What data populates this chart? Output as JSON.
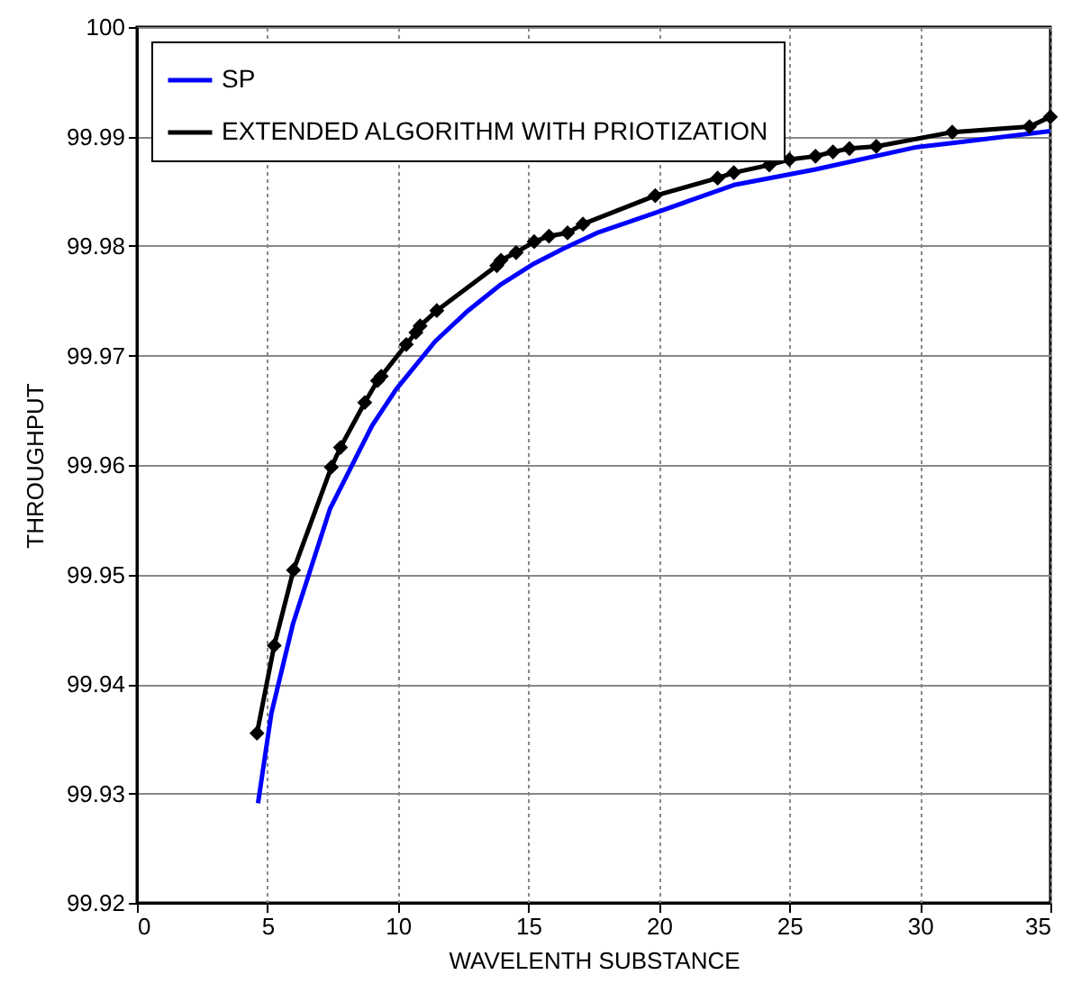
{
  "chart_data": {
    "type": "line",
    "xlabel": "WAVELENTH SUBSTANCE",
    "ylabel": "THROUGHPUT",
    "xlim": [
      0,
      35
    ],
    "xticks": [
      0,
      5,
      10,
      15,
      20,
      25,
      30,
      35
    ],
    "ylim": [
      99.92,
      100
    ],
    "yticks": [
      99.92,
      99.93,
      99.94,
      99.95,
      99.96,
      99.97,
      99.98,
      99.99,
      100
    ],
    "grid": true,
    "legend": "top left",
    "line_style": "solid",
    "series": [
      {
        "name": "SP",
        "color": "#0000ff",
        "marker": "none",
        "x": [
          4.64,
          5.15,
          5.98,
          7.4,
          9.01,
          9.93,
          11.43,
          12.69,
          13.95,
          15.22,
          16.37,
          17.63,
          19.82,
          22.92,
          26.0,
          29.81,
          31.24,
          35
        ],
        "values": [
          99.9291,
          99.9373,
          99.9455,
          99.956,
          99.9636,
          99.9669,
          99.9713,
          99.9741,
          99.9765,
          99.9784,
          99.9798,
          99.9812,
          99.983,
          99.9856,
          99.987,
          99.989,
          99.9894,
          99.9905
        ]
      },
      {
        "name": "EXTENDED ALGORITHM WITH PRIOTIZATION",
        "color": "#000000",
        "marker": "diamond",
        "x": [
          4.6,
          5.26,
          6.0,
          7.45,
          7.8,
          8.73,
          9.22,
          9.36,
          10.32,
          10.69,
          10.85,
          11.49,
          13.79,
          13.95,
          14.53,
          15.22,
          15.79,
          16.5,
          17.09,
          19.86,
          22.25,
          22.87,
          24.23,
          25.0,
          26.0,
          26.67,
          27.3,
          28.33,
          31.24,
          34.2,
          35
        ],
        "values": [
          99.9355,
          99.9435,
          99.9504,
          99.9598,
          99.9616,
          99.9657,
          99.9677,
          99.9681,
          99.971,
          99.9721,
          99.9727,
          99.9741,
          99.9782,
          99.9787,
          99.9794,
          99.9804,
          99.9809,
          99.9812,
          99.982,
          99.9846,
          99.9862,
          99.9867,
          99.9874,
          99.9879,
          99.9882,
          99.9886,
          99.9889,
          99.9891,
          99.9904,
          99.9909,
          99.9918
        ]
      }
    ]
  }
}
